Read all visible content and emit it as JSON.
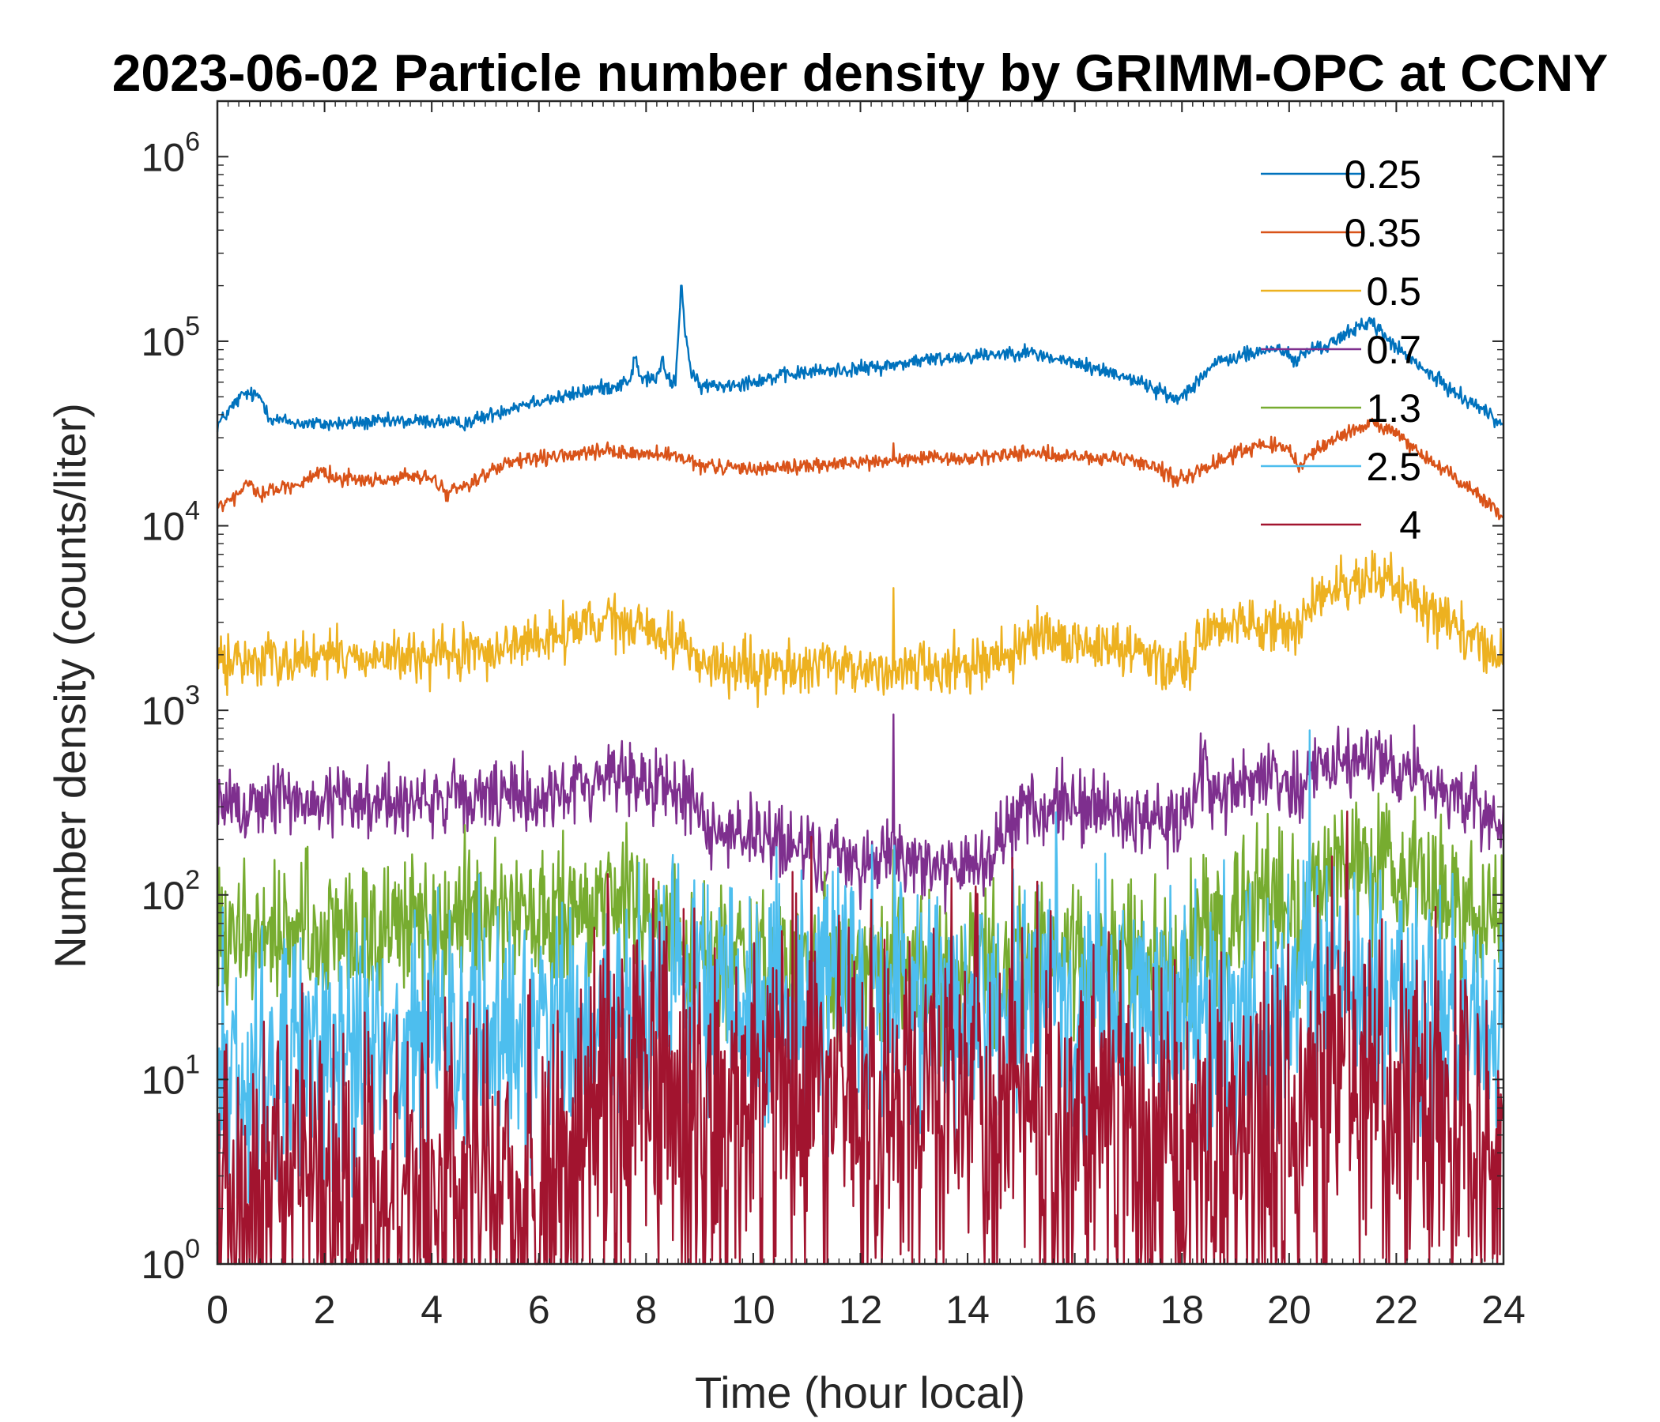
{
  "chart_data": {
    "type": "line",
    "title": "2023-06-02 Particle number density by GRIMM-OPC at CCNY",
    "xlabel": "Time (hour local)",
    "ylabel": "Number density (counts/liter)",
    "xlim": [
      0,
      24
    ],
    "ylim": [
      1,
      2000000
    ],
    "yscale": "log",
    "xticks": [
      0,
      2,
      4,
      6,
      8,
      10,
      12,
      14,
      16,
      18,
      20,
      22,
      24
    ],
    "xtick_labels": [
      "0",
      "2",
      "4",
      "6",
      "8",
      "10",
      "12",
      "14",
      "16",
      "18",
      "20",
      "22",
      "24"
    ],
    "yticks": [
      {
        "value": 1,
        "base": "10",
        "exp": "0"
      },
      {
        "value": 10,
        "base": "10",
        "exp": "1"
      },
      {
        "value": 100,
        "base": "10",
        "exp": "2"
      },
      {
        "value": 1000,
        "base": "10",
        "exp": "3"
      },
      {
        "value": 10000,
        "base": "10",
        "exp": "4"
      },
      {
        "value": 100000,
        "base": "10",
        "exp": "5"
      },
      {
        "value": 1000000,
        "base": "10",
        "exp": "6"
      }
    ],
    "legend_position": "top-right",
    "series": [
      {
        "name": "0.25",
        "label": "0.25",
        "color": "#0072BD",
        "noise": 0.02,
        "points": [
          [
            0,
            35000
          ],
          [
            0.3,
            45000
          ],
          [
            0.5,
            52000
          ],
          [
            0.8,
            50000
          ],
          [
            1.0,
            38000
          ],
          [
            1.5,
            36000
          ],
          [
            2.0,
            35500
          ],
          [
            3.0,
            36500
          ],
          [
            4.0,
            37000
          ],
          [
            4.5,
            35500
          ],
          [
            5.0,
            39000
          ],
          [
            5.5,
            44000
          ],
          [
            6.0,
            48000
          ],
          [
            6.5,
            50000
          ],
          [
            7.0,
            55000
          ],
          [
            7.5,
            58000
          ],
          [
            7.7,
            62000
          ],
          [
            7.8,
            82000
          ],
          [
            7.9,
            62000
          ],
          [
            8.2,
            63000
          ],
          [
            8.3,
            78000
          ],
          [
            8.4,
            62000
          ],
          [
            8.55,
            60000
          ],
          [
            8.62,
            130000
          ],
          [
            8.66,
            200000
          ],
          [
            8.72,
            120000
          ],
          [
            8.85,
            65000
          ],
          [
            9.0,
            57000
          ],
          [
            9.5,
            58000
          ],
          [
            10,
            61000
          ],
          [
            11,
            68000
          ],
          [
            12,
            71000
          ],
          [
            12.6,
            74000
          ],
          [
            13,
            78000
          ],
          [
            14,
            83000
          ],
          [
            15,
            88000
          ],
          [
            15.2,
            86000
          ],
          [
            16,
            76000
          ],
          [
            17,
            64000
          ],
          [
            17.5,
            55000
          ],
          [
            17.9,
            48000
          ],
          [
            18.2,
            58000
          ],
          [
            18.6,
            75000
          ],
          [
            19,
            82000
          ],
          [
            19.5,
            88000
          ],
          [
            19.8,
            92000
          ],
          [
            20.0,
            85000
          ],
          [
            20.1,
            75000
          ],
          [
            20.3,
            88000
          ],
          [
            20.6,
            93000
          ],
          [
            21,
            105000
          ],
          [
            21.3,
            120000
          ],
          [
            21.5,
            130000
          ],
          [
            21.8,
            105000
          ],
          [
            22.3,
            78000
          ],
          [
            23,
            55000
          ],
          [
            23.5,
            45000
          ],
          [
            24,
            35000
          ]
        ]
      },
      {
        "name": "0.35",
        "label": "0.35",
        "color": "#D95319",
        "noise": 0.02,
        "points": [
          [
            0,
            12500
          ],
          [
            0.3,
            14000
          ],
          [
            0.5,
            16000
          ],
          [
            0.6,
            18000
          ],
          [
            0.7,
            15000
          ],
          [
            1,
            15500
          ],
          [
            1.5,
            17000
          ],
          [
            2,
            19000
          ],
          [
            2.5,
            18000
          ],
          [
            3,
            17500
          ],
          [
            3.5,
            18500
          ],
          [
            4,
            18000
          ],
          [
            4.3,
            15000
          ],
          [
            4.7,
            17000
          ],
          [
            5,
            19000
          ],
          [
            5.5,
            22000
          ],
          [
            6,
            23000
          ],
          [
            7,
            25000
          ],
          [
            7.5,
            25000
          ],
          [
            8,
            24500
          ],
          [
            8.5,
            24000
          ],
          [
            9,
            21000
          ],
          [
            10,
            20500
          ],
          [
            11,
            21000
          ],
          [
            12,
            22000
          ],
          [
            12.6,
            22500
          ],
          [
            13,
            23000
          ],
          [
            14,
            23000
          ],
          [
            15,
            25000
          ],
          [
            16,
            23500
          ],
          [
            17,
            22500
          ],
          [
            17.5,
            21000
          ],
          [
            17.9,
            18000
          ],
          [
            18.3,
            19500
          ],
          [
            19,
            25000
          ],
          [
            19.6,
            28000
          ],
          [
            20,
            25000
          ],
          [
            20.2,
            21000
          ],
          [
            20.5,
            26000
          ],
          [
            21,
            31000
          ],
          [
            21.5,
            36000
          ],
          [
            21.9,
            33000
          ],
          [
            22.5,
            24000
          ],
          [
            23,
            19000
          ],
          [
            23.5,
            15000
          ],
          [
            24,
            11000
          ]
        ]
      },
      {
        "name": "0.5",
        "label": "0.5",
        "color": "#EDB120",
        "noise": 0.07,
        "points": [
          [
            0,
            1800
          ],
          [
            1,
            1900
          ],
          [
            2,
            1950
          ],
          [
            3,
            1950
          ],
          [
            4,
            1900
          ],
          [
            5,
            2100
          ],
          [
            6,
            2400
          ],
          [
            7,
            2900
          ],
          [
            7.5,
            3000
          ],
          [
            8,
            2700
          ],
          [
            8.8,
            2300
          ],
          [
            9,
            1800
          ],
          [
            10,
            1600
          ],
          [
            11,
            1750
          ],
          [
            12,
            1650
          ],
          [
            12.6,
            1700
          ],
          [
            13,
            1700
          ],
          [
            14,
            1800
          ],
          [
            15,
            2100
          ],
          [
            15.3,
            2400
          ],
          [
            16,
            2300
          ],
          [
            17,
            2200
          ],
          [
            17.7,
            1800
          ],
          [
            18.2,
            1900
          ],
          [
            18.3,
            2500
          ],
          [
            19,
            2900
          ],
          [
            19.7,
            3100
          ],
          [
            20.1,
            2600
          ],
          [
            20.5,
            3800
          ],
          [
            21,
            4800
          ],
          [
            21.5,
            5200
          ],
          [
            22,
            4800
          ],
          [
            22.5,
            3800
          ],
          [
            23,
            3000
          ],
          [
            23.5,
            2500
          ],
          [
            24,
            1800
          ]
        ]
      },
      {
        "name": "0.7",
        "label": "0.7",
        "color": "#7E2F8E",
        "noise": 0.1,
        "points": [
          [
            0,
            290
          ],
          [
            1,
            330
          ],
          [
            2,
            320
          ],
          [
            3,
            330
          ],
          [
            4,
            320
          ],
          [
            5,
            330
          ],
          [
            6,
            340
          ],
          [
            7,
            400
          ],
          [
            7.3,
            470
          ],
          [
            8,
            420
          ],
          [
            8.8,
            340
          ],
          [
            9.2,
            230
          ],
          [
            10,
            210
          ],
          [
            11,
            170
          ],
          [
            12,
            150
          ],
          [
            12.6,
            170
          ],
          [
            13,
            160
          ],
          [
            14,
            130
          ],
          [
            14.6,
            190
          ],
          [
            15.2,
            290
          ],
          [
            16,
            310
          ],
          [
            17,
            260
          ],
          [
            18,
            240
          ],
          [
            18.35,
            500
          ],
          [
            18.5,
            360
          ],
          [
            19,
            380
          ],
          [
            19.7,
            480
          ],
          [
            20.2,
            370
          ],
          [
            20.5,
            500
          ],
          [
            21,
            530
          ],
          [
            21.5,
            560
          ],
          [
            22,
            500
          ],
          [
            23,
            360
          ],
          [
            24,
            230
          ]
        ]
      },
      {
        "name": "1.3",
        "label": "1.3",
        "color": "#77AC30",
        "noise": 0.2,
        "points": [
          [
            0,
            55
          ],
          [
            1,
            58
          ],
          [
            2,
            62
          ],
          [
            3,
            65
          ],
          [
            4,
            70
          ],
          [
            5,
            72
          ],
          [
            6,
            70
          ],
          [
            7,
            72
          ],
          [
            7.3,
            110
          ],
          [
            8,
            72
          ],
          [
            9,
            50
          ],
          [
            10,
            42
          ],
          [
            11,
            38
          ],
          [
            12,
            38
          ],
          [
            13,
            38
          ],
          [
            14,
            38
          ],
          [
            15,
            45
          ],
          [
            16,
            48
          ],
          [
            17,
            46
          ],
          [
            18,
            40
          ],
          [
            18.4,
            90
          ],
          [
            18.6,
            55
          ],
          [
            19,
            68
          ],
          [
            19.7,
            85
          ],
          [
            20.2,
            60
          ],
          [
            20.5,
            130
          ],
          [
            21,
            145
          ],
          [
            22,
            135
          ],
          [
            23,
            95
          ],
          [
            24,
            62
          ]
        ]
      },
      {
        "name": "2.5",
        "label": "2.5",
        "color": "#4DBEEE",
        "noise": 0.35,
        "points": [
          [
            0,
            10
          ],
          [
            1,
            12
          ],
          [
            2,
            14
          ],
          [
            3,
            16
          ],
          [
            4,
            16
          ],
          [
            5,
            18
          ],
          [
            6,
            20
          ],
          [
            7,
            24
          ],
          [
            8,
            28
          ],
          [
            9,
            28
          ],
          [
            10,
            26
          ],
          [
            11,
            25
          ],
          [
            12,
            25
          ],
          [
            13,
            25
          ],
          [
            14,
            25
          ],
          [
            15,
            26
          ],
          [
            16,
            25
          ],
          [
            17,
            24
          ],
          [
            18,
            23
          ],
          [
            19,
            23
          ],
          [
            20,
            23
          ],
          [
            20.5,
            45
          ],
          [
            21,
            40
          ],
          [
            22,
            32
          ],
          [
            23,
            22
          ],
          [
            24,
            18
          ]
        ]
      },
      {
        "name": "4",
        "label": "4",
        "color": "#A2142F",
        "noise": 0.5,
        "points": [
          [
            0,
            2
          ],
          [
            1,
            2.3
          ],
          [
            2,
            2.5
          ],
          [
            3,
            2.5
          ],
          [
            4,
            2.5
          ],
          [
            5,
            2.8
          ],
          [
            6,
            3
          ],
          [
            6.7,
            3.5
          ],
          [
            7.0,
            10
          ],
          [
            8,
            9
          ],
          [
            9,
            6
          ],
          [
            10,
            8
          ],
          [
            11,
            9
          ],
          [
            12,
            9
          ],
          [
            13,
            9
          ],
          [
            14,
            9
          ],
          [
            15,
            8.5
          ],
          [
            16,
            7
          ],
          [
            17,
            6
          ],
          [
            18,
            5
          ],
          [
            19,
            4
          ],
          [
            20,
            4
          ],
          [
            20.5,
            11
          ],
          [
            21,
            10
          ],
          [
            22,
            8
          ],
          [
            23,
            6
          ],
          [
            24,
            4.5
          ]
        ]
      }
    ],
    "spikes": [
      {
        "series": "0.25",
        "x": 8.66,
        "y": 200000
      },
      {
        "series": "0.35",
        "x": 12.62,
        "y": 28000
      },
      {
        "series": "0.5",
        "x": 12.62,
        "y": 4600
      },
      {
        "series": "0.7",
        "x": 12.62,
        "y": 950
      },
      {
        "series": "0.7",
        "x": 18.35,
        "y": 750
      },
      {
        "series": "1.3",
        "x": 12.62,
        "y": 175
      },
      {
        "series": "1.3",
        "x": 7.3,
        "y": 170
      },
      {
        "series": "1.3",
        "x": 18.4,
        "y": 165
      },
      {
        "series": "1.3",
        "x": 20.45,
        "y": 190
      },
      {
        "series": "2.5",
        "x": 20.38,
        "y": 780
      },
      {
        "series": "2.5",
        "x": 15.65,
        "y": 280
      },
      {
        "series": "2.5",
        "x": 8.9,
        "y": 120
      },
      {
        "series": "4",
        "x": 7.2,
        "y": 45
      }
    ]
  }
}
